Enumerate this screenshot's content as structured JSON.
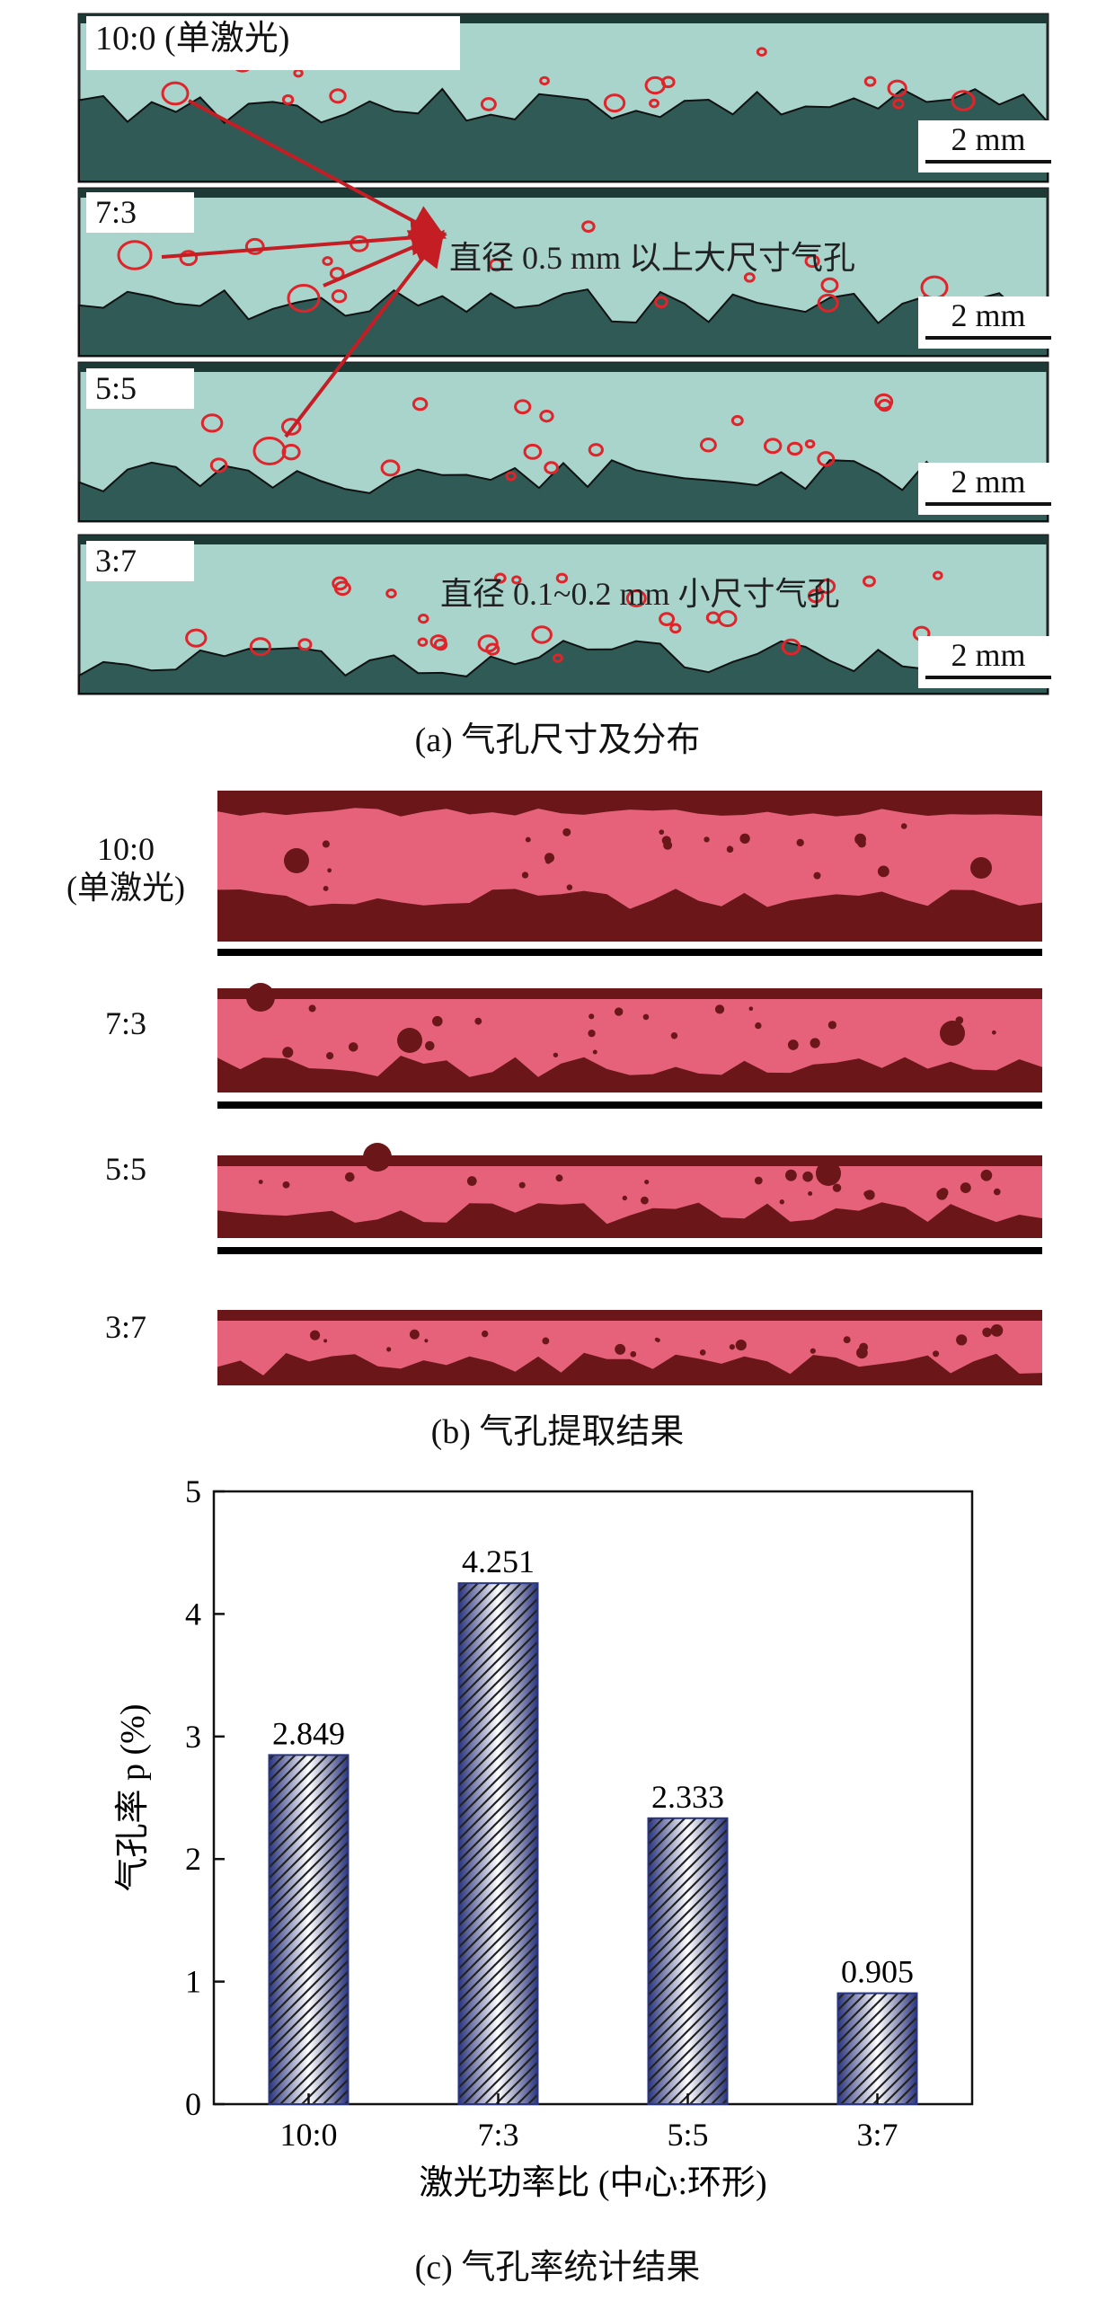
{
  "panel_a": {
    "caption": "(a) 气孔尺寸及分布",
    "samples": [
      {
        "label": "10:0 (单激光)",
        "scale": "2 mm"
      },
      {
        "label": "7:3",
        "scale": "2 mm"
      },
      {
        "label": "5:5",
        "scale": "2 mm"
      },
      {
        "label": "3:7",
        "scale": "2 mm"
      }
    ],
    "annotation_large": "直径 0.5 mm 以上大尺寸气孔",
    "annotation_small": "直径 0.1~0.2 mm 小尺寸气孔",
    "colors": {
      "weld": "#a8d4cc",
      "base": "#2f5a55",
      "pore_outline": "#e0242a",
      "arrow": "#c41e24"
    }
  },
  "panel_b": {
    "caption": "(b) 气孔提取结果",
    "labels": [
      {
        "line1": "10:0",
        "line2": "(单激光)"
      },
      {
        "line1": "7:3",
        "line2": ""
      },
      {
        "line1": "5:5",
        "line2": ""
      },
      {
        "line1": "3:7",
        "line2": ""
      }
    ],
    "colors": {
      "weld": "#e5627a",
      "dark": "#6b1719"
    }
  },
  "chart_data": {
    "type": "bar",
    "caption": "(c) 气孔率统计结果",
    "categories": [
      "10:0",
      "7:3",
      "5:5",
      "3:7"
    ],
    "values": [
      2.849,
      4.251,
      2.333,
      0.905
    ],
    "value_labels": [
      "2.849",
      "4.251",
      "2.333",
      "0.905"
    ],
    "xlabel": "激光功率比 (中心:环形)",
    "ylabel": "气孔率 p (%)",
    "ylim": [
      0,
      5
    ],
    "yticks": [
      "0",
      "1",
      "2",
      "3",
      "4",
      "5"
    ],
    "grid": false,
    "bar_colors": {
      "edge": "#2a3580",
      "center": "#ffffff",
      "hatch": "#222222"
    }
  }
}
